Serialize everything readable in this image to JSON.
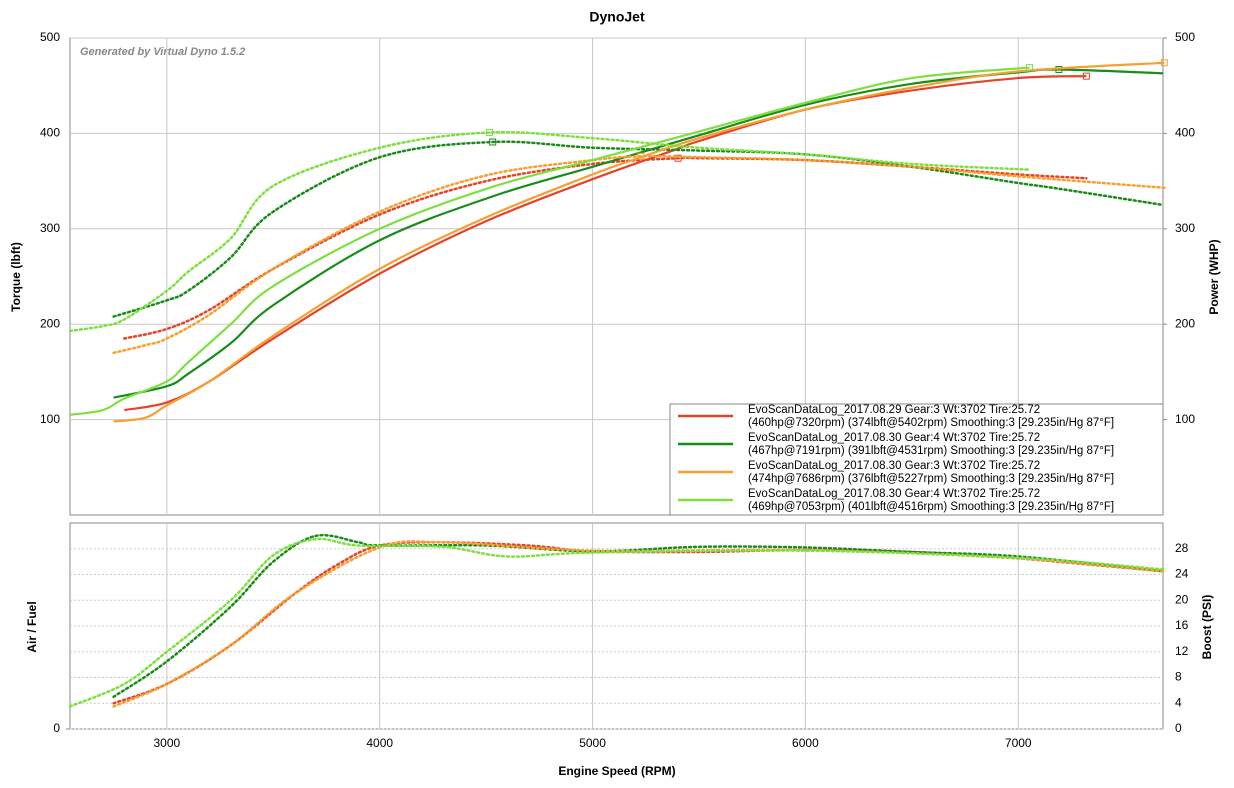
{
  "chart_data": [
    {
      "type": "line",
      "title": "DynoJet",
      "annotation": "Generated by Virtual Dyno 1.5.2",
      "xlabel": "Engine Speed (RPM)",
      "ylabel": "Torque (lbft)",
      "y2label": "Power (WHP)",
      "xlim": [
        2545,
        7680
      ],
      "xticks": [
        3000,
        4000,
        5000,
        6000,
        7000
      ],
      "ylim": [
        0,
        500
      ],
      "yticks": [
        100,
        200,
        300,
        400,
        500
      ],
      "y2lim": [
        0,
        500
      ],
      "y2ticks": [
        100,
        200,
        300,
        400,
        500
      ],
      "series": [
        {
          "name": "EvoScanDataLog_2017.08.29 Gear:3 Wt:3702 Tire:25.72",
          "detail": "(460hp@7320rpm) (374lbft@5402rpm) Smoothing:3 [29.235in/Hg 87°F]",
          "color": "#e5432a",
          "x": [
            2800,
            3000,
            3200,
            3500,
            4000,
            4500,
            5000,
            5402,
            5500,
            6000,
            6500,
            7000,
            7320
          ],
          "power": [
            110,
            118,
            140,
            185,
            253,
            308,
            352,
            384,
            392,
            425,
            445,
            458,
            460
          ],
          "torque": [
            185,
            195,
            215,
            258,
            315,
            350,
            368,
            374,
            374,
            372,
            365,
            357,
            353
          ]
        },
        {
          "name": "EvoScanDataLog_2017.08.30 Gear:4 Wt:3702 Tire:25.72",
          "detail": "(467hp@7191rpm) (391lbft@4531rpm) Smoothing:3 [29.235in/Hg 87°F]",
          "color": "#1a8c1a",
          "x": [
            2750,
            3000,
            3100,
            3300,
            3500,
            4000,
            4531,
            5000,
            5500,
            6000,
            6500,
            7000,
            7191,
            7680
          ],
          "power": [
            123,
            135,
            148,
            180,
            220,
            288,
            334,
            365,
            398,
            430,
            452,
            464,
            467,
            463
          ],
          "torque": [
            208,
            225,
            235,
            270,
            318,
            375,
            391,
            385,
            382,
            378,
            365,
            348,
            342,
            325
          ]
        },
        {
          "name": "EvoScanDataLog_2017.08.30 Gear:3 Wt:3702 Tire:25.72",
          "detail": "(474hp@7686rpm) (376lbft@5227rpm) Smoothing:3 [29.235in/Hg 87°F]",
          "color": "#f5a030",
          "x": [
            2750,
            2900,
            3000,
            3200,
            3500,
            4000,
            4500,
            5000,
            5227,
            5500,
            6000,
            6500,
            7000,
            7686
          ],
          "power": [
            98,
            102,
            115,
            140,
            188,
            258,
            312,
            357,
            375,
            395,
            425,
            448,
            465,
            474
          ],
          "torque": [
            170,
            178,
            185,
            210,
            258,
            318,
            356,
            372,
            376,
            375,
            372,
            365,
            355,
            343
          ]
        },
        {
          "name": "EvoScanDataLog_2017.08.30 Gear:4 Wt:3702 Tire:25.72",
          "detail": "(469hp@7053rpm) (401lbft@4516rpm) Smoothing:3 [29.235in/Hg 87°F]",
          "color": "#7ee040",
          "x": [
            2545,
            2700,
            2800,
            3000,
            3100,
            3300,
            3500,
            4000,
            4516,
            5000,
            5500,
            6000,
            6500,
            7053
          ],
          "power": [
            105,
            110,
            122,
            140,
            160,
            200,
            240,
            300,
            343,
            372,
            402,
            432,
            458,
            469
          ],
          "torque": [
            193,
            198,
            205,
            235,
            255,
            290,
            345,
            385,
            401,
            395,
            385,
            378,
            368,
            362
          ]
        }
      ]
    },
    {
      "type": "line",
      "ylabel": "Air / Fuel",
      "y2label": "Boost (PSI)",
      "ylim": [
        0,
        32
      ],
      "yticks": [
        0
      ],
      "y2lim": [
        0,
        32
      ],
      "y2ticks": [
        0,
        4,
        8,
        12,
        16,
        20,
        24,
        28
      ],
      "series": [
        {
          "color": "#e5432a",
          "axis": "y2",
          "x": [
            2750,
            3000,
            3300,
            3600,
            3800,
            4000,
            4300,
            4700,
            5000,
            5500,
            6000,
            6500,
            7000,
            7680
          ],
          "values": [
            4,
            7,
            13,
            21,
            25.5,
            28.5,
            29,
            28.5,
            27.6,
            27.5,
            27.8,
            27.5,
            26.5,
            24.5
          ]
        },
        {
          "color": "#1a8c1a",
          "axis": "y2",
          "x": [
            2750,
            3000,
            3300,
            3500,
            3700,
            3900,
            4000,
            4500,
            5000,
            5500,
            6000,
            6500,
            7000,
            7680
          ],
          "values": [
            5,
            10.5,
            19,
            26,
            30,
            29,
            28.5,
            28.5,
            27.6,
            28.3,
            28.2,
            27.5,
            26.8,
            24.5
          ]
        },
        {
          "color": "#f5a030",
          "axis": "y2",
          "x": [
            2750,
            3000,
            3300,
            3600,
            4000,
            4300,
            5000,
            6000,
            7000,
            7680
          ],
          "values": [
            3.5,
            7,
            13,
            21,
            28.2,
            29,
            27.7,
            27.8,
            26.5,
            24.5
          ]
        },
        {
          "color": "#7ee040",
          "axis": "y2",
          "x": [
            2545,
            2800,
            3000,
            3300,
            3500,
            3700,
            3900,
            4300,
            4600,
            5000,
            6000,
            7000,
            7680
          ],
          "values": [
            3.5,
            7,
            12,
            20,
            27,
            29.5,
            28.5,
            28.3,
            26.8,
            27.4,
            27.7,
            26.6,
            24.8
          ]
        }
      ]
    }
  ]
}
